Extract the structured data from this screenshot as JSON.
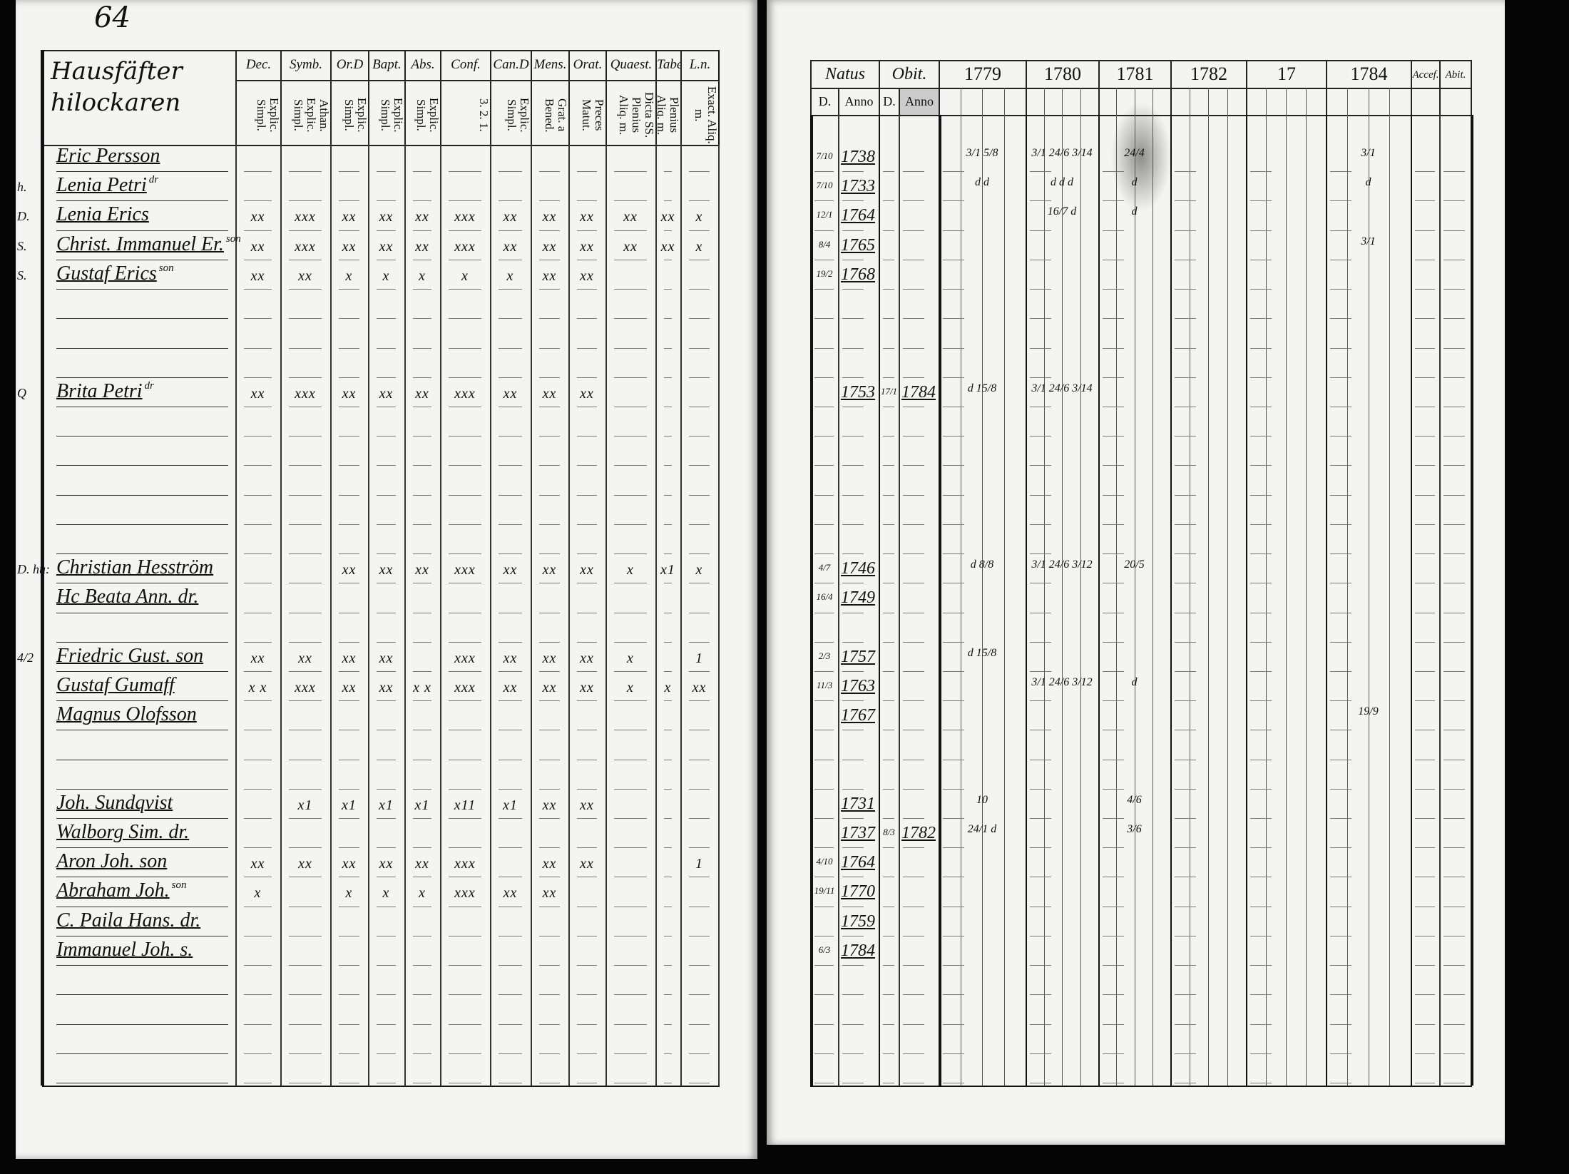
{
  "page_number": "64",
  "left_table": {
    "name_header": [
      "Hausfäfter",
      "hilockaren"
    ],
    "columns": [
      {
        "label": "Dec.",
        "sub": "Explic. Simpl."
      },
      {
        "label": "Symb.",
        "sub": "Athan. Explic. Simpl."
      },
      {
        "label": "Or.D",
        "sub": "Explic. Simpl."
      },
      {
        "label": "Bapt.",
        "sub": "Explic. Simpl."
      },
      {
        "label": "Abs.",
        "sub": "Explic. Simpl."
      },
      {
        "label": "Conf.",
        "sub": "3. 2. 1."
      },
      {
        "label": "Can.D",
        "sub": "Explic. Simpl."
      },
      {
        "label": "Mens.",
        "sub": "Grat. a Bened."
      },
      {
        "label": "Orat.",
        "sub": "Preces Matut."
      },
      {
        "label": "Quaest.",
        "sub": "Dicta SS. Plenius Aliq. m."
      },
      {
        "label": "Tabe.",
        "sub": "Plenius Aliq. m."
      },
      {
        "label": "L.n.",
        "sub": "Exact. Aliq. m."
      }
    ]
  },
  "right_table": {
    "natus": "Natus",
    "obit": "Obit.",
    "d": "D.",
    "anno": "Anno",
    "years": [
      "1779",
      "1780",
      "1781",
      "1782",
      "17",
      "1784"
    ],
    "accef": "Accef.",
    "abit": "Abit."
  },
  "rows": [
    {
      "name": "Eric Persson",
      "natus_d": "7/10",
      "natus_anno": "1738",
      "years": [
        "3/1 5/8",
        "3/1 24/6 3/14",
        "24/4",
        "",
        "",
        "3/1"
      ]
    },
    {
      "margin": "h.",
      "name": "Lenia Petri",
      "note": "dr",
      "natus_d": "7/10",
      "natus_anno": "1733",
      "years": [
        "d d",
        "d d d",
        "d",
        "",
        "",
        "d"
      ]
    },
    {
      "margin": "D.",
      "name": "Lenia Erics",
      "marks": [
        "xx",
        "xxx",
        "xx",
        "xx",
        "xx",
        "xxx",
        "xx",
        "xx",
        "xx",
        "xx",
        "xx",
        "x"
      ],
      "natus_d": "12/1",
      "natus_anno": "1764",
      "years": [
        "",
        "16/7 d",
        "d",
        "",
        "",
        ""
      ]
    },
    {
      "margin": "S.",
      "name": "Christ. Immanuel Er.",
      "note": "son",
      "marks": [
        "xx",
        "xxx",
        "xx",
        "xx",
        "xx",
        "xxx",
        "xx",
        "xx",
        "xx",
        "xx",
        "xx",
        "x"
      ],
      "natus_d": "8/4",
      "natus_anno": "1765",
      "years": [
        "",
        "",
        "",
        "",
        "",
        "3/1"
      ]
    },
    {
      "margin": "S.",
      "name": "Gustaf Erics",
      "note": "son",
      "marks": [
        "xx",
        "xx",
        "x",
        "x",
        "x",
        "x",
        "x",
        "xx",
        "xx",
        "",
        "",
        ""
      ],
      "natus_d": "19/2",
      "natus_anno": "1768"
    },
    {},
    {},
    {},
    {
      "margin": "Q",
      "name": "Brita Petri",
      "note": "dr",
      "marks": [
        "xx",
        "xxx",
        "xx",
        "xx",
        "xx",
        "xxx",
        "xx",
        "xx",
        "xx",
        "",
        "",
        ""
      ],
      "natus_anno": "1753",
      "obit_d": "17/1",
      "obit_anno": "1784",
      "years": [
        "d 15/8",
        "3/1 24/6 3/14",
        "",
        "",
        "",
        ""
      ]
    },
    {},
    {},
    {},
    {},
    {},
    {
      "margin": "D. hu:",
      "name": "Christian Hesström",
      "marks": [
        "",
        "",
        "xx",
        "xx",
        "xx",
        "xxx",
        "xx",
        "xx",
        "xx",
        "x",
        "x1",
        "x"
      ],
      "natus_d": "4/7",
      "natus_anno": "1746",
      "years": [
        "d 8/8",
        "3/1 24/6 3/12",
        "20/5",
        "",
        "",
        ""
      ]
    },
    {
      "name": "Hc Beata Ann. dr.",
      "natus_d": "16/4",
      "natus_anno": "1749"
    },
    {},
    {
      "margin": "4/2",
      "name": "Friedric Gust. son",
      "marks": [
        "xx",
        "xx",
        "xx",
        "xx",
        "",
        "xxx",
        "xx",
        "xx",
        "xx",
        "x",
        "",
        "1"
      ],
      "natus_d": "2/3",
      "natus_anno": "1757",
      "years": [
        "d 15/8",
        "",
        "",
        "",
        "",
        ""
      ]
    },
    {
      "name": "Gustaf Gumaff",
      "marks": [
        "x x",
        "xxx",
        "xx",
        "xx",
        "x x",
        "xxx",
        "xx",
        "xx",
        "xx",
        "x",
        "x",
        "xx"
      ],
      "natus_d": "11/3",
      "natus_anno": "1763",
      "years": [
        "",
        "3/1 24/6 3/12",
        "d",
        "",
        "",
        ""
      ]
    },
    {
      "name": "Magnus Olofsson",
      "natus_anno": "1767",
      "years": [
        "",
        "",
        "",
        "",
        "",
        "19/9"
      ]
    },
    {},
    {},
    {
      "name": "Joh. Sundqvist",
      "marks": [
        "",
        "x1",
        "x1",
        "x1",
        "x1",
        "x11",
        "x1",
        "xx",
        "xx",
        "",
        "",
        ""
      ],
      "natus_anno": "1731",
      "years": [
        "10",
        "",
        "4/6",
        "",
        "",
        ""
      ]
    },
    {
      "name": "Walborg Sim. dr.",
      "natus_anno": "1737",
      "obit_d": "8/3",
      "obit_anno": "1782",
      "years": [
        "24/1 d",
        "",
        "3/6",
        "",
        "",
        ""
      ]
    },
    {
      "name": "Aron Joh. son",
      "marks": [
        "xx",
        "xx",
        "xx",
        "xx",
        "xx",
        "xxx",
        "",
        "xx",
        "xx",
        "",
        "",
        "1"
      ],
      "natus_d": "4/10",
      "natus_anno": "1764"
    },
    {
      "name": "Abraham Joh.",
      "note": "son",
      "marks": [
        "x",
        "",
        "x",
        "x",
        "x",
        "xxx",
        "xx",
        "xx",
        "",
        "",
        "",
        ""
      ],
      "natus_d": "19/11",
      "natus_anno": "1770"
    },
    {
      "name": "C. Paila Hans. dr.",
      "natus_anno": "1759"
    },
    {
      "name": "Immanuel Joh. s.",
      "natus_d": "6/3",
      "natus_anno": "1784"
    },
    {},
    {},
    {},
    {}
  ]
}
